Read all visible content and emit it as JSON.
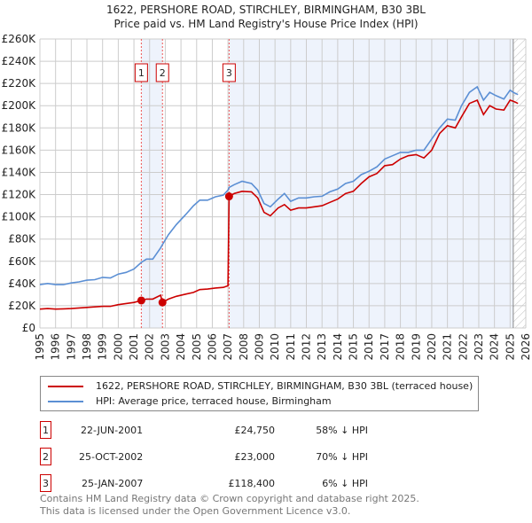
{
  "chart_data": {
    "type": "line",
    "title": "1622, PERSHORE ROAD, STIRCHLEY, BIRMINGHAM, B30 3BL",
    "subtitle": "Price paid vs. HM Land Registry's House Price Index (HPI)",
    "xlim": [
      1995,
      2026
    ],
    "ylim": [
      0,
      260000
    ],
    "x_ticks": [
      "1995",
      "1996",
      "1997",
      "1998",
      "1999",
      "2000",
      "2001",
      "2002",
      "2003",
      "2004",
      "2005",
      "2006",
      "2007",
      "2008",
      "2009",
      "2010",
      "2011",
      "2012",
      "2013",
      "2014",
      "2015",
      "2016",
      "2017",
      "2018",
      "2019",
      "2020",
      "2021",
      "2022",
      "2023",
      "2024",
      "2025",
      "2026"
    ],
    "y_ticks": [
      "£0",
      "£20K",
      "£40K",
      "£60K",
      "£80K",
      "£100K",
      "£120K",
      "£140K",
      "£160K",
      "£180K",
      "£200K",
      "£220K",
      "£240K",
      "£260K"
    ],
    "grid": true,
    "colors": {
      "property": "#cc0000",
      "hpi": "#5b8fd4",
      "shade": "#eef3fc"
    },
    "series": [
      {
        "name": "1622, PERSHORE ROAD, STIRCHLEY, BIRMINGHAM, B30 3BL (terraced house)",
        "x": [
          1995,
          1995.5,
          1996,
          1996.5,
          1997,
          1997.5,
          1998,
          1998.5,
          1999,
          1999.5,
          2000,
          2000.5,
          2001,
          2001.47,
          2001.8,
          2002.2,
          2002.7,
          2002.82,
          2003.2,
          2003.7,
          2004.3,
          2004.8,
          2005.2,
          2005.7,
          2006.2,
          2006.7,
          2007.0,
          2007.07,
          2007.4,
          2007.9,
          2008.5,
          2008.9,
          2009.3,
          2009.7,
          2010.2,
          2010.6,
          2011.0,
          2011.5,
          2012.0,
          2012.5,
          2013.0,
          2013.5,
          2014.0,
          2014.5,
          2015.0,
          2015.5,
          2016.0,
          2016.5,
          2017.0,
          2017.5,
          2018.0,
          2018.5,
          2019.0,
          2019.5,
          2020.0,
          2020.5,
          2021.0,
          2021.5,
          2021.9,
          2022.4,
          2022.9,
          2023.3,
          2023.7,
          2024.1,
          2024.6,
          2025.0,
          2025.2,
          2025.5
        ],
        "y": [
          17000,
          17500,
          17000,
          17200,
          17500,
          18000,
          18500,
          19000,
          19500,
          19500,
          21000,
          22000,
          23000,
          24750,
          26000,
          26000,
          29500,
          23000,
          26000,
          28500,
          30500,
          32000,
          34500,
          35000,
          36000,
          36500,
          38000,
          118400,
          121000,
          123000,
          122500,
          117000,
          104000,
          101000,
          108000,
          111000,
          106000,
          108000,
          108000,
          109000,
          110000,
          113000,
          116000,
          121000,
          123000,
          130000,
          136000,
          139000,
          146000,
          147000,
          152000,
          155000,
          156000,
          153000,
          160000,
          175000,
          182000,
          180000,
          190000,
          202000,
          205000,
          192000,
          200000,
          197000,
          196000,
          205000,
          204000,
          202000
        ]
      },
      {
        "name": "HPI: Average price, terraced house, Birmingham",
        "x": [
          1995,
          1995.5,
          1996,
          1996.5,
          1997,
          1997.5,
          1998,
          1998.5,
          1999,
          1999.5,
          2000,
          2000.5,
          2001,
          2001.47,
          2001.8,
          2002.2,
          2002.7,
          2002.82,
          2003.2,
          2003.7,
          2004.3,
          2004.8,
          2005.2,
          2005.7,
          2006.2,
          2006.7,
          2007.0,
          2007.07,
          2007.4,
          2007.9,
          2008.5,
          2008.9,
          2009.3,
          2009.7,
          2010.2,
          2010.6,
          2011.0,
          2011.5,
          2012.0,
          2012.5,
          2013.0,
          2013.5,
          2014.0,
          2014.5,
          2015.0,
          2015.5,
          2016.0,
          2016.5,
          2017.0,
          2017.5,
          2018.0,
          2018.5,
          2019.0,
          2019.5,
          2020.0,
          2020.5,
          2021.0,
          2021.5,
          2021.9,
          2022.4,
          2022.9,
          2023.3,
          2023.7,
          2024.1,
          2024.6,
          2025.0,
          2025.2,
          2025.5
        ],
        "y": [
          39000,
          40000,
          39000,
          39000,
          40500,
          41500,
          43000,
          43500,
          45500,
          45000,
          48500,
          50000,
          53000,
          59000,
          62000,
          62000,
          72000,
          75000,
          84000,
          93000,
          102000,
          110000,
          115000,
          115000,
          118000,
          119500,
          124000,
          126500,
          129000,
          132000,
          130000,
          124000,
          112000,
          109000,
          116000,
          121000,
          114000,
          117000,
          117000,
          118000,
          118500,
          122500,
          125000,
          130000,
          132000,
          138000,
          141000,
          145000,
          152000,
          155000,
          158000,
          158000,
          160000,
          160000,
          170000,
          180000,
          188000,
          187000,
          200000,
          212000,
          217000,
          205000,
          212000,
          209000,
          206000,
          214000,
          212000,
          210000
        ]
      }
    ],
    "sales": [
      {
        "label": "1",
        "x": 2001.47,
        "y": 24750
      },
      {
        "label": "2",
        "x": 2002.82,
        "y": 23000
      },
      {
        "label": "3",
        "x": 2007.07,
        "y": 118400
      }
    ],
    "shaded_ranges": [
      [
        2001.47,
        2002.82
      ],
      [
        2007.07,
        2025.2
      ]
    ],
    "hatched_from": 2025.2
  },
  "legend": {
    "property": "1622, PERSHORE ROAD, STIRCHLEY, BIRMINGHAM, B30 3BL (terraced house)",
    "hpi": "HPI: Average price, terraced house, Birmingham"
  },
  "transactions": [
    {
      "num": "1",
      "date": "22-JUN-2001",
      "price": "£24,750",
      "diff": "58% ↓ HPI"
    },
    {
      "num": "2",
      "date": "25-OCT-2002",
      "price": "£23,000",
      "diff": "70% ↓ HPI"
    },
    {
      "num": "3",
      "date": "25-JAN-2007",
      "price": "£118,400",
      "diff": "6% ↓ HPI"
    }
  ],
  "footer": {
    "line1": "Contains HM Land Registry data © Crown copyright and database right 2025.",
    "line2": "This data is licensed under the Open Government Licence v3.0."
  }
}
